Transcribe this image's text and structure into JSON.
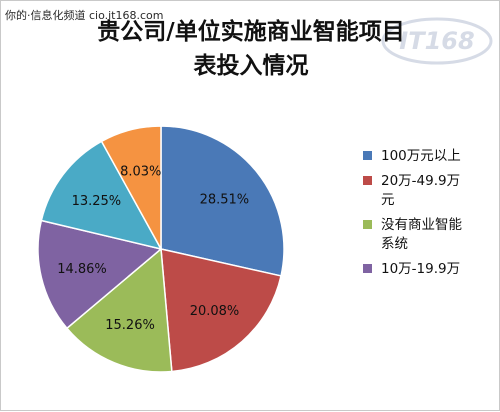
{
  "source_caption": "你的·信息化频道 cio.it168.com",
  "title_line1": "贵公司/单位实施商业智能项目",
  "title_line2": "表投入情况",
  "watermark_text": "IT168",
  "chart_data": {
    "type": "pie",
    "title": "贵公司/单位实施商业智能项目表投入情况",
    "slices": [
      {
        "label": "100万元以上",
        "value": 28.51,
        "display": "28.51%",
        "color": "#4a79b7"
      },
      {
        "label": "20万-49.9万元",
        "value": 20.08,
        "display": "20.08%",
        "color": "#bd4b48"
      },
      {
        "label": "没有商业智能系统",
        "value": 15.26,
        "display": "15.26%",
        "color": "#9bbb59"
      },
      {
        "label": "10万-19.9万",
        "value": 14.86,
        "display": "14.86%",
        "color": "#7f63a2"
      },
      {
        "label": "",
        "value": 13.25,
        "display": "13.25%",
        "color": "#4aaac6"
      },
      {
        "label": "",
        "value": 8.03,
        "display": "8.03%",
        "color": "#f59341"
      }
    ],
    "legend_position": "right",
    "legend_entries": [
      "100万元以上",
      "20万-49.9万元",
      "没有商业智能系统",
      "10万-19.9万"
    ]
  }
}
